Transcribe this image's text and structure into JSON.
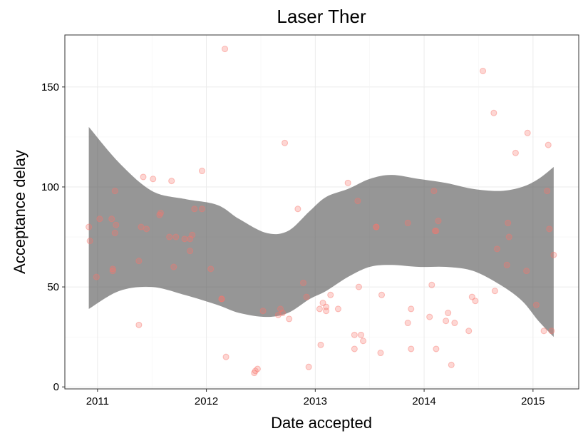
{
  "chart_data": {
    "type": "scatter",
    "title": "Laser Ther",
    "xlabel": "Date accepted",
    "ylabel": "Acceptance delay",
    "x_ticks": [
      "2011",
      "2012",
      "2013",
      "2014",
      "2015"
    ],
    "y_ticks": [
      0,
      50,
      100,
      150
    ],
    "xlim": [
      2010.7,
      2015.42
    ],
    "ylim": [
      -1,
      176
    ],
    "grid": true,
    "point_color": "#f8766d",
    "band_color": "#555555",
    "series": [
      {
        "points": [
          [
            2010.92,
            80
          ],
          [
            2010.93,
            73
          ],
          [
            2010.99,
            55
          ],
          [
            2011.02,
            84
          ],
          [
            2011.13,
            84
          ],
          [
            2011.14,
            59
          ],
          [
            2011.14,
            58
          ],
          [
            2011.16,
            98
          ],
          [
            2011.16,
            77
          ],
          [
            2011.17,
            81
          ],
          [
            2011.38,
            63
          ],
          [
            2011.38,
            31
          ],
          [
            2011.4,
            80
          ],
          [
            2011.42,
            105
          ],
          [
            2011.45,
            79
          ],
          [
            2011.51,
            104
          ],
          [
            2011.57,
            86
          ],
          [
            2011.58,
            87
          ],
          [
            2011.66,
            75
          ],
          [
            2011.68,
            103
          ],
          [
            2011.7,
            60
          ],
          [
            2011.72,
            75
          ],
          [
            2011.8,
            74
          ],
          [
            2011.85,
            74
          ],
          [
            2011.85,
            68
          ],
          [
            2011.87,
            76
          ],
          [
            2011.89,
            89
          ],
          [
            2011.96,
            108
          ],
          [
            2011.96,
            89
          ],
          [
            2012.04,
            59
          ],
          [
            2012.14,
            44
          ],
          [
            2012.14,
            44
          ],
          [
            2012.17,
            169
          ],
          [
            2012.18,
            15
          ],
          [
            2012.44,
            7
          ],
          [
            2012.45,
            8
          ],
          [
            2012.47,
            9
          ],
          [
            2012.52,
            38
          ],
          [
            2012.66,
            36
          ],
          [
            2012.68,
            39
          ],
          [
            2012.7,
            37
          ],
          [
            2012.72,
            122
          ],
          [
            2012.76,
            34
          ],
          [
            2012.84,
            89
          ],
          [
            2012.89,
            52
          ],
          [
            2012.92,
            45
          ],
          [
            2012.94,
            10
          ],
          [
            2013.04,
            39
          ],
          [
            2013.05,
            21
          ],
          [
            2013.07,
            42
          ],
          [
            2013.1,
            40
          ],
          [
            2013.1,
            38
          ],
          [
            2013.14,
            46
          ],
          [
            2013.21,
            39
          ],
          [
            2013.3,
            102
          ],
          [
            2013.36,
            26
          ],
          [
            2013.36,
            19
          ],
          [
            2013.39,
            93
          ],
          [
            2013.4,
            50
          ],
          [
            2013.42,
            26
          ],
          [
            2013.44,
            23
          ],
          [
            2013.56,
            80
          ],
          [
            2013.56,
            80
          ],
          [
            2013.6,
            17
          ],
          [
            2013.61,
            46
          ],
          [
            2013.85,
            82
          ],
          [
            2013.85,
            32
          ],
          [
            2013.88,
            39
          ],
          [
            2013.88,
            19
          ],
          [
            2014.05,
            35
          ],
          [
            2014.07,
            51
          ],
          [
            2014.09,
            98
          ],
          [
            2014.1,
            78
          ],
          [
            2014.11,
            19
          ],
          [
            2014.11,
            78
          ],
          [
            2014.13,
            83
          ],
          [
            2014.2,
            33
          ],
          [
            2014.22,
            37
          ],
          [
            2014.25,
            11
          ],
          [
            2014.28,
            32
          ],
          [
            2014.41,
            28
          ],
          [
            2014.44,
            45
          ],
          [
            2014.47,
            43
          ],
          [
            2014.54,
            158
          ],
          [
            2014.64,
            137
          ],
          [
            2014.65,
            48
          ],
          [
            2014.67,
            69
          ],
          [
            2014.76,
            61
          ],
          [
            2014.77,
            82
          ],
          [
            2014.78,
            75
          ],
          [
            2014.84,
            117
          ],
          [
            2014.94,
            58
          ],
          [
            2014.95,
            127
          ],
          [
            2015.03,
            41
          ],
          [
            2015.1,
            28
          ],
          [
            2015.13,
            98
          ],
          [
            2015.14,
            121
          ],
          [
            2015.15,
            79
          ],
          [
            2015.17,
            28
          ],
          [
            2015.19,
            66
          ]
        ]
      }
    ],
    "confidence_band": {
      "x": [
        2010.92,
        2011.2,
        2011.5,
        2011.8,
        2012.1,
        2012.3,
        2012.55,
        2012.75,
        2012.95,
        2013.1,
        2013.3,
        2013.5,
        2013.7,
        2013.95,
        2014.2,
        2014.45,
        2014.7,
        2014.9,
        2015.05,
        2015.19
      ],
      "upper": [
        130,
        112,
        98,
        94,
        91,
        84,
        77,
        78,
        88,
        95,
        99,
        104,
        106,
        104,
        102,
        99,
        98,
        100,
        104,
        110
      ],
      "lower": [
        39,
        48,
        50,
        46,
        41,
        37,
        35,
        37,
        44,
        48,
        55,
        60,
        61,
        60,
        60,
        58,
        51,
        43,
        33,
        25
      ]
    }
  }
}
